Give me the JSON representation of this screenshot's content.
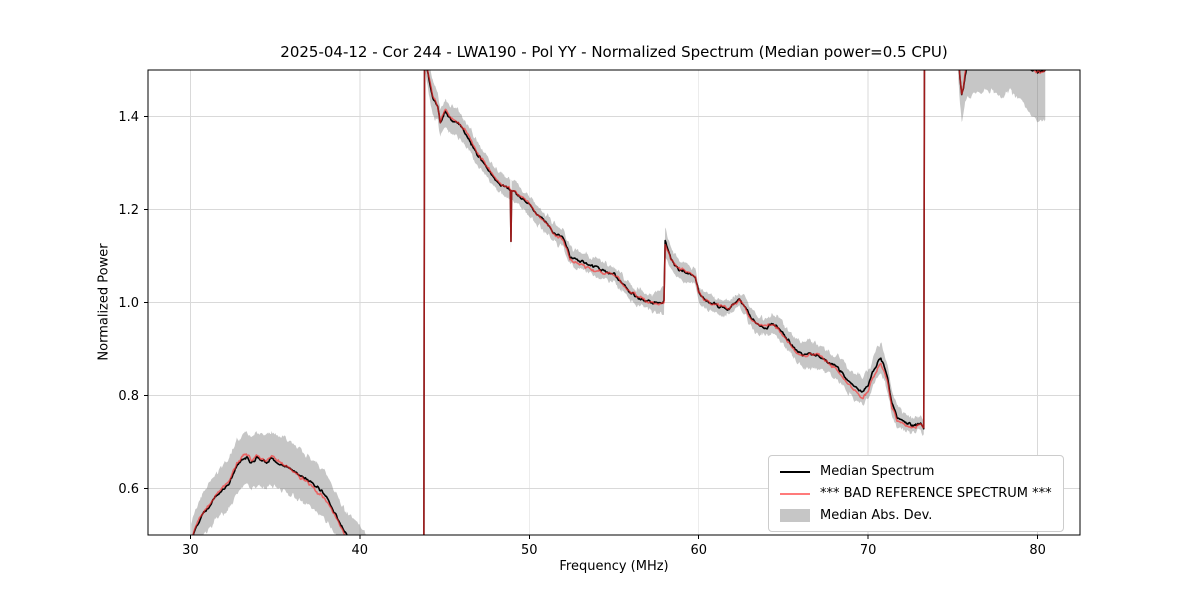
{
  "colors": {
    "background": "#ffffff",
    "axis": "#000000",
    "grid": "#d9d9d9",
    "legend_border": "#cccccc"
  },
  "chart_data": {
    "type": "line",
    "title": "2025-04-12 - Cor 244 - LWA190 - Pol YY - Normalized Spectrum (Median power=0.5 CPU)",
    "xlabel": "Frequency (MHz)",
    "ylabel": "Normalized Power",
    "xlim": [
      27.5,
      82.5
    ],
    "ylim": [
      0.5,
      1.5
    ],
    "xticks": [
      30,
      40,
      50,
      60,
      70,
      80
    ],
    "yticks": [
      0.6,
      0.8,
      1.0,
      1.2,
      1.4
    ],
    "grid": true,
    "noise": {
      "line_amp": 0.005,
      "red_amp": 0.005,
      "band_amp": 0.009
    },
    "legend": {
      "position": "lower right",
      "entries": [
        {
          "label": "Median Spectrum",
          "type": "line",
          "color": "#000000",
          "alpha": 1.0
        },
        {
          "label": "*** BAD REFERENCE SPECTRUM ***",
          "type": "line",
          "color": "#ff2a2a",
          "alpha": 0.62
        },
        {
          "label": "Median Abs. Dev.",
          "type": "band",
          "color": "#808080",
          "alpha": 0.45
        }
      ]
    },
    "segments": [
      {
        "name": "low-band-bump",
        "median": [
          [
            30.05,
            0.485
          ],
          [
            30.3,
            0.515
          ],
          [
            30.7,
            0.542
          ],
          [
            31.1,
            0.562
          ],
          [
            31.5,
            0.582
          ],
          [
            31.9,
            0.598
          ],
          [
            32.3,
            0.612
          ],
          [
            32.7,
            0.645
          ],
          [
            33.0,
            0.66
          ],
          [
            33.3,
            0.668
          ],
          [
            33.6,
            0.654
          ],
          [
            33.9,
            0.667
          ],
          [
            34.2,
            0.66
          ],
          [
            34.5,
            0.656
          ],
          [
            34.8,
            0.667
          ],
          [
            35.1,
            0.656
          ],
          [
            35.4,
            0.652
          ],
          [
            35.7,
            0.649
          ],
          [
            36.0,
            0.64
          ],
          [
            36.3,
            0.633
          ],
          [
            36.7,
            0.623
          ],
          [
            37.1,
            0.613
          ],
          [
            37.5,
            0.601
          ],
          [
            37.9,
            0.588
          ],
          [
            38.2,
            0.57
          ],
          [
            38.5,
            0.55
          ],
          [
            38.8,
            0.528
          ],
          [
            39.1,
            0.507
          ],
          [
            39.4,
            0.495
          ],
          [
            39.8,
            0.49
          ],
          [
            40.1,
            0.478
          ],
          [
            40.45,
            0.462
          ]
        ],
        "mad": [
          [
            30.05,
            0.04
          ],
          [
            31,
            0.048
          ],
          [
            32,
            0.052
          ],
          [
            33,
            0.056
          ],
          [
            34,
            0.058
          ],
          [
            35,
            0.058
          ],
          [
            36,
            0.056
          ],
          [
            37,
            0.053
          ],
          [
            38,
            0.05
          ],
          [
            39,
            0.047
          ],
          [
            39.8,
            0.042
          ],
          [
            40.45,
            0.038
          ]
        ],
        "red_delta": [
          [
            30.05,
            0.004
          ],
          [
            31,
            0.003
          ],
          [
            32,
            0.004
          ],
          [
            33,
            0.006
          ],
          [
            33.6,
            0.008
          ],
          [
            34,
            0.004
          ],
          [
            34.8,
            0.006
          ],
          [
            35.5,
            0.002
          ],
          [
            36,
            -0.003
          ],
          [
            37,
            -0.006
          ],
          [
            37.6,
            -0.009
          ],
          [
            38.2,
            -0.006
          ],
          [
            39,
            -0.005
          ],
          [
            39.6,
            -0.008
          ],
          [
            40.45,
            -0.012
          ]
        ]
      },
      {
        "name": "main-band",
        "median": [
          [
            43.78,
            0.5
          ],
          [
            43.82,
            1.53
          ],
          [
            44.0,
            1.5
          ],
          [
            44.15,
            1.47
          ],
          [
            44.3,
            1.44
          ],
          [
            44.45,
            1.43
          ],
          [
            44.6,
            1.42
          ],
          [
            44.75,
            1.385
          ],
          [
            44.9,
            1.4
          ],
          [
            45.05,
            1.41
          ],
          [
            45.2,
            1.4
          ],
          [
            45.5,
            1.39
          ],
          [
            45.8,
            1.385
          ],
          [
            46.1,
            1.37
          ],
          [
            46.4,
            1.355
          ],
          [
            46.7,
            1.335
          ],
          [
            47.0,
            1.315
          ],
          [
            47.3,
            1.3
          ],
          [
            47.6,
            1.285
          ],
          [
            47.9,
            1.27
          ],
          [
            48.2,
            1.255
          ],
          [
            48.5,
            1.25
          ],
          [
            48.8,
            1.245
          ],
          [
            48.88,
            1.24
          ],
          [
            48.92,
            1.13
          ],
          [
            48.96,
            1.24
          ],
          [
            49.2,
            1.235
          ],
          [
            49.5,
            1.225
          ],
          [
            49.8,
            1.215
          ],
          [
            50.1,
            1.205
          ],
          [
            50.4,
            1.19
          ],
          [
            50.7,
            1.18
          ],
          [
            51.0,
            1.17
          ],
          [
            51.2,
            1.165
          ],
          [
            51.4,
            1.15
          ],
          [
            51.7,
            1.145
          ],
          [
            52.0,
            1.14
          ],
          [
            52.2,
            1.12
          ],
          [
            52.4,
            1.1
          ],
          [
            52.7,
            1.095
          ],
          [
            53.0,
            1.09
          ],
          [
            53.4,
            1.085
          ],
          [
            53.8,
            1.078
          ],
          [
            54.2,
            1.072
          ],
          [
            54.6,
            1.065
          ],
          [
            55.0,
            1.06
          ],
          [
            55.3,
            1.05
          ],
          [
            55.6,
            1.035
          ],
          [
            56.0,
            1.02
          ],
          [
            56.4,
            1.012
          ],
          [
            56.8,
            1.005
          ],
          [
            57.2,
            1.0
          ],
          [
            57.6,
            0.998
          ],
          [
            57.95,
            1.005
          ],
          [
            58.02,
            1.13
          ],
          [
            58.15,
            1.115
          ],
          [
            58.35,
            1.095
          ],
          [
            58.6,
            1.08
          ],
          [
            58.9,
            1.07
          ],
          [
            59.2,
            1.065
          ],
          [
            59.5,
            1.06
          ],
          [
            59.8,
            1.055
          ],
          [
            60.0,
            1.02
          ],
          [
            60.3,
            1.008
          ],
          [
            60.6,
            1.0
          ],
          [
            61.0,
            0.995
          ],
          [
            61.4,
            0.99
          ],
          [
            61.8,
            0.988
          ],
          [
            62.1,
            0.998
          ],
          [
            62.4,
            1.005
          ],
          [
            62.7,
            0.995
          ],
          [
            63.0,
            0.972
          ],
          [
            63.3,
            0.958
          ],
          [
            63.6,
            0.95
          ],
          [
            64.0,
            0.946
          ],
          [
            64.3,
            0.954
          ],
          [
            64.6,
            0.948
          ],
          [
            65.0,
            0.932
          ],
          [
            65.3,
            0.918
          ],
          [
            65.6,
            0.902
          ],
          [
            66.0,
            0.892
          ],
          [
            66.3,
            0.886
          ],
          [
            66.6,
            0.89
          ],
          [
            67.0,
            0.886
          ],
          [
            67.4,
            0.878
          ],
          [
            67.8,
            0.868
          ],
          [
            68.2,
            0.86
          ],
          [
            68.6,
            0.842
          ],
          [
            69.0,
            0.826
          ],
          [
            69.4,
            0.815
          ],
          [
            69.7,
            0.81
          ],
          [
            70.0,
            0.822
          ],
          [
            70.3,
            0.852
          ],
          [
            70.55,
            0.872
          ],
          [
            70.75,
            0.88
          ],
          [
            70.95,
            0.862
          ],
          [
            71.15,
            0.835
          ],
          [
            71.4,
            0.782
          ],
          [
            71.7,
            0.756
          ],
          [
            72.0,
            0.747
          ],
          [
            72.3,
            0.74
          ],
          [
            72.6,
            0.736
          ],
          [
            72.9,
            0.736
          ],
          [
            73.1,
            0.742
          ],
          [
            73.22,
            0.732
          ],
          [
            73.28,
            0.73
          ],
          [
            73.32,
            1.53
          ]
        ],
        "mad": [
          [
            43.8,
            0.02
          ],
          [
            44.2,
            0.035
          ],
          [
            45,
            0.03
          ],
          [
            46,
            0.028
          ],
          [
            47,
            0.025
          ],
          [
            48,
            0.022
          ],
          [
            49,
            0.02
          ],
          [
            50,
            0.02
          ],
          [
            51,
            0.02
          ],
          [
            52,
            0.02
          ],
          [
            53,
            0.018
          ],
          [
            54,
            0.018
          ],
          [
            55,
            0.018
          ],
          [
            56,
            0.016
          ],
          [
            57,
            0.016
          ],
          [
            58,
            0.03
          ],
          [
            58.5,
            0.022
          ],
          [
            59,
            0.018
          ],
          [
            60,
            0.018
          ],
          [
            61,
            0.016
          ],
          [
            62,
            0.016
          ],
          [
            63,
            0.018
          ],
          [
            64,
            0.02
          ],
          [
            65,
            0.022
          ],
          [
            66,
            0.025
          ],
          [
            66.5,
            0.03
          ],
          [
            67,
            0.025
          ],
          [
            68,
            0.025
          ],
          [
            69,
            0.028
          ],
          [
            70,
            0.03
          ],
          [
            70.7,
            0.032
          ],
          [
            71.3,
            0.028
          ],
          [
            72,
            0.02
          ],
          [
            72.6,
            0.016
          ],
          [
            73.3,
            0.015
          ]
        ],
        "red_delta": [
          [
            43.8,
            0
          ],
          [
            45,
            0.004
          ],
          [
            46,
            0.005
          ],
          [
            47,
            0.004
          ],
          [
            48,
            0.002
          ],
          [
            49,
            0
          ],
          [
            50,
            0.003
          ],
          [
            51,
            0
          ],
          [
            52,
            -0.004
          ],
          [
            53,
            -0.008
          ],
          [
            53.6,
            -0.01
          ],
          [
            54.2,
            -0.006
          ],
          [
            55,
            0
          ],
          [
            56,
            0.002
          ],
          [
            57,
            0
          ],
          [
            58,
            -0.004
          ],
          [
            59,
            0.003
          ],
          [
            60,
            0
          ],
          [
            61,
            0.002
          ],
          [
            62,
            0
          ],
          [
            63,
            -0.003
          ],
          [
            64,
            0.003
          ],
          [
            65,
            -0.004
          ],
          [
            66,
            -0.005
          ],
          [
            67,
            0.003
          ],
          [
            68,
            -0.004
          ],
          [
            69,
            -0.008
          ],
          [
            69.6,
            -0.014
          ],
          [
            70,
            -0.012
          ],
          [
            70.5,
            -0.015
          ],
          [
            70.8,
            -0.012
          ],
          [
            71.2,
            -0.006
          ],
          [
            71.8,
            -0.008
          ],
          [
            72.4,
            -0.006
          ],
          [
            73.3,
            0
          ]
        ]
      },
      {
        "name": "high-band-edge",
        "median": [
          [
            75.32,
            1.53
          ],
          [
            75.42,
            1.48
          ],
          [
            75.52,
            1.445
          ],
          [
            75.62,
            1.46
          ],
          [
            75.72,
            1.49
          ],
          [
            75.85,
            1.51
          ],
          [
            76.1,
            1.525
          ],
          [
            76.5,
            1.535
          ],
          [
            77.0,
            1.53
          ],
          [
            77.5,
            1.525
          ],
          [
            78.0,
            1.53
          ],
          [
            78.5,
            1.515
          ],
          [
            79.0,
            1.52
          ],
          [
            79.5,
            1.505
          ],
          [
            80.0,
            1.495
          ],
          [
            80.45,
            1.5
          ]
        ],
        "mad": [
          [
            75.35,
            0.05
          ],
          [
            75.6,
            0.06
          ],
          [
            76.0,
            0.075
          ],
          [
            76.5,
            0.085
          ],
          [
            77.0,
            0.07
          ],
          [
            77.5,
            0.075
          ],
          [
            78.0,
            0.088
          ],
          [
            78.3,
            0.06
          ],
          [
            78.6,
            0.065
          ],
          [
            79.0,
            0.08
          ],
          [
            79.5,
            0.095
          ],
          [
            80.0,
            0.105
          ],
          [
            80.45,
            0.11
          ]
        ],
        "red_delta": [
          [
            75.35,
            0
          ],
          [
            75.6,
            0.005
          ],
          [
            76,
            0
          ],
          [
            80.45,
            0
          ]
        ]
      }
    ]
  }
}
